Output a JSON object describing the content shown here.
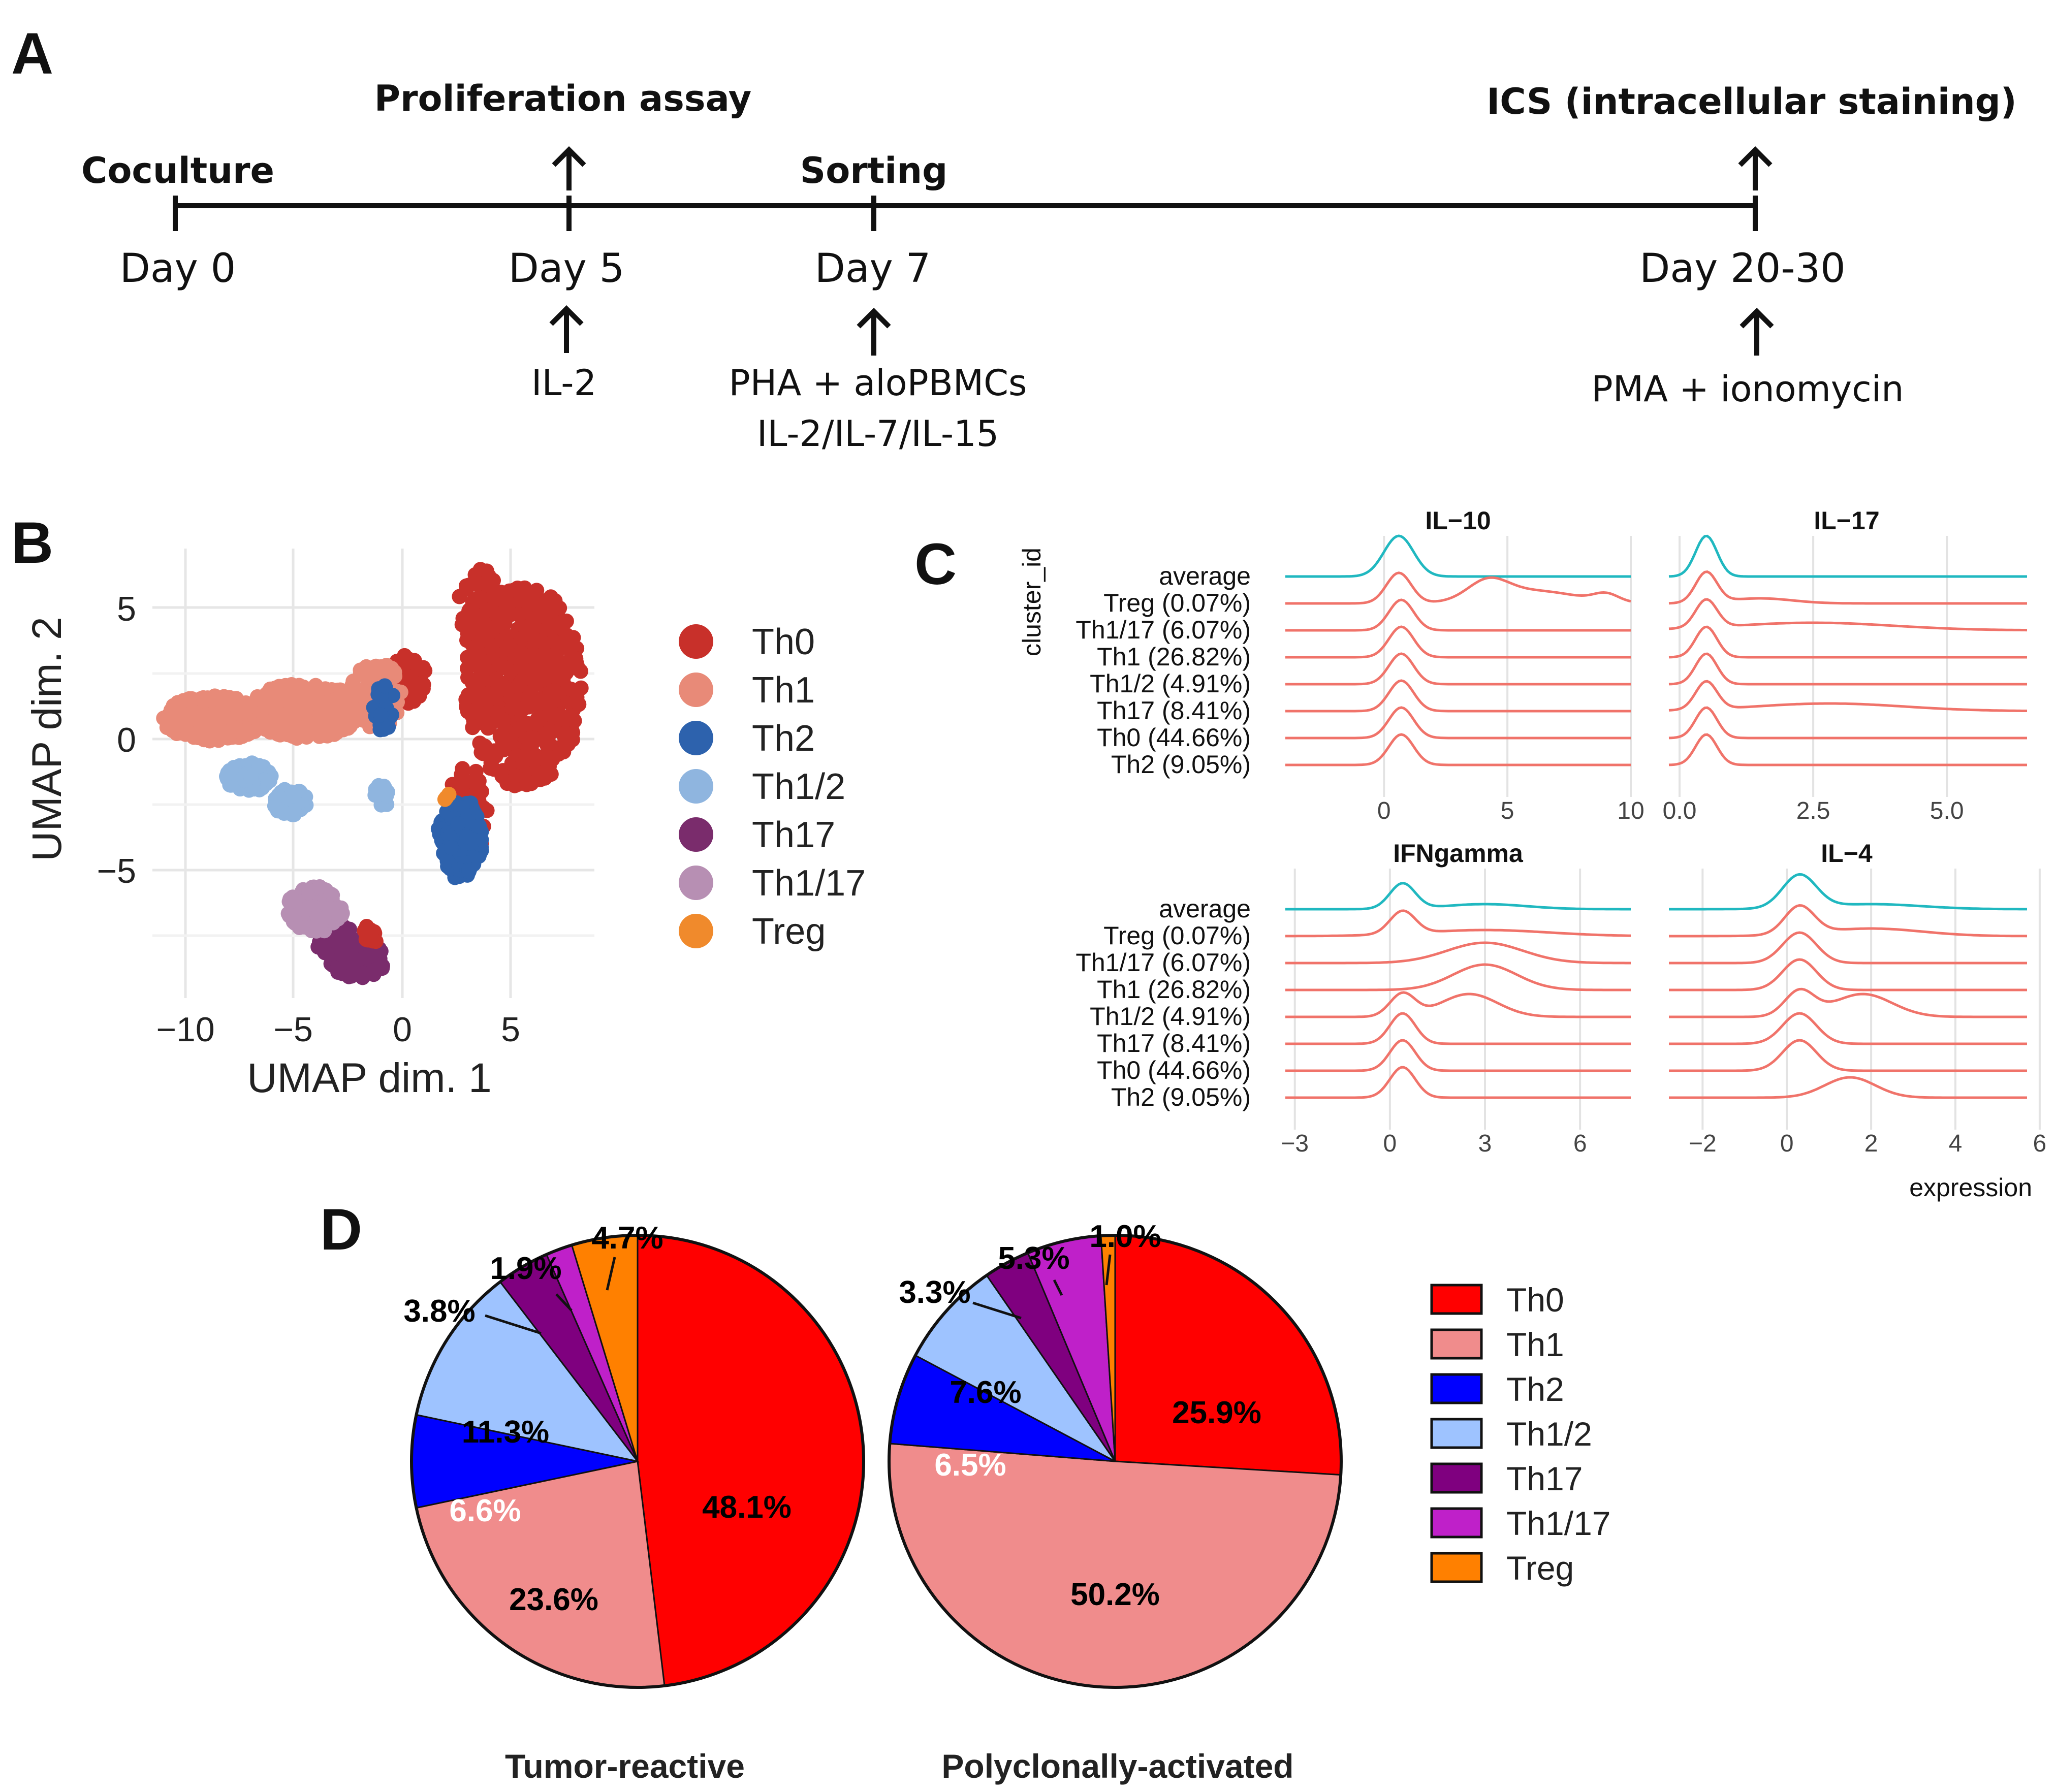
{
  "panels": {
    "a": "A",
    "b": "B",
    "c": "C",
    "d": "D"
  },
  "timeline": {
    "days": [
      "Day 0",
      "Day 5",
      "Day 7",
      "Day 20-30"
    ],
    "above": [
      "Coculture",
      "Proliferation assay",
      "Sorting",
      "ICS (intracellular staining)"
    ],
    "below": {
      "day5": "IL-2",
      "day7_line1": "PHA + aloPBMCs",
      "day7_line2": "IL-2/IL-7/IL-15",
      "day20": "PMA + ionomycin"
    }
  },
  "colors": {
    "umap": {
      "Th0": "#c8302a",
      "Th1": "#e88a78",
      "Th2": "#2d62ad",
      "Th1/2": "#8fb5df",
      "Th17": "#7a2c6c",
      "Th1/17": "#b78fb3",
      "Treg": "#f08a2c"
    },
    "pie": {
      "Th0": "#ff0000",
      "Th1": "#f08c8c",
      "Th2": "#0000ff",
      "Th1/2": "#9ec3ff",
      "Th17": "#7f007f",
      "Th1/17": "#bf20c9",
      "Treg": "#ff8000"
    },
    "avg_line": "#20b8c0",
    "cluster_line": "#f0736a"
  },
  "umap": {
    "xlabel": "UMAP dim. 1",
    "ylabel": "UMAP dim. 2",
    "x_ticks": [
      "−10",
      "−5",
      "0",
      "5"
    ],
    "y_ticks": [
      "5",
      "0",
      "−5"
    ],
    "legend": [
      "Th0",
      "Th1",
      "Th2",
      "Th1/2",
      "Th17",
      "Th1/17",
      "Treg"
    ]
  },
  "ridge": {
    "ylabel": "cluster_id",
    "xlabel": "expression",
    "rows": [
      "average",
      "Treg (0.07%)",
      "Th1/17 (6.07%)",
      "Th1 (26.82%)",
      "Th1/2 (4.91%)",
      "Th17 (8.41%)",
      "Th0 (44.66%)",
      "Th2 (9.05%)"
    ],
    "panels": [
      {
        "title": "IL−10",
        "ticks": [
          "0",
          "5",
          "10"
        ]
      },
      {
        "title": "IL−17",
        "ticks": [
          "0.0",
          "2.5",
          "5.0"
        ]
      },
      {
        "title": "IFNgamma",
        "ticks": [
          "−3",
          "0",
          "3",
          "6"
        ]
      },
      {
        "title": "IL−4",
        "ticks": [
          "−2",
          "0",
          "2",
          "4",
          "6"
        ]
      }
    ]
  },
  "chart_data": [
    {
      "type": "pie",
      "title": "Tumor-reactive",
      "categories": [
        "Th0",
        "Th1",
        "Th2",
        "Th1/2",
        "Th17",
        "Th1/17",
        "Treg"
      ],
      "values": [
        48.1,
        23.6,
        6.6,
        11.3,
        3.8,
        1.9,
        4.7
      ],
      "labels": [
        "48.1%",
        "23.6%",
        "6.6%",
        "11.3%",
        "3.8%",
        "1.9%",
        "4.7%"
      ]
    },
    {
      "type": "pie",
      "title": "Polyclonally-activated",
      "categories": [
        "Th0",
        "Th1",
        "Th2",
        "Th1/2",
        "Th17",
        "Th1/17",
        "Treg"
      ],
      "values": [
        25.9,
        50.2,
        6.5,
        7.6,
        3.3,
        5.3,
        1.0
      ],
      "labels": [
        "25.9%",
        "50.2%",
        "6.5%",
        "7.6%",
        "3.3%",
        "5.3%",
        "1.0%"
      ]
    }
  ],
  "pie_legend": [
    "Th0",
    "Th1",
    "Th2",
    "Th1/2",
    "Th17",
    "Th1/17",
    "Treg"
  ]
}
